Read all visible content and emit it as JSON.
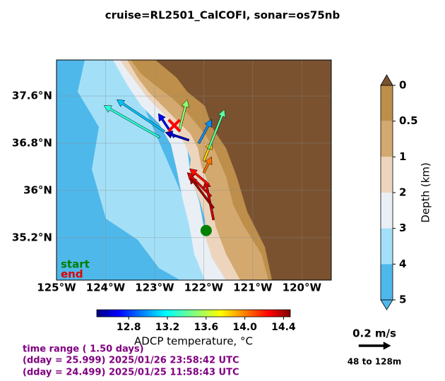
{
  "title": "cruise=RL2501_CalCOFI,   sonar=os75nb",
  "map": {
    "lonlim": [
      -125,
      -119.4
    ],
    "latlim": [
      34.48,
      38.21
    ],
    "lon_ticks": [
      {
        "value": -125,
        "label": "125°W"
      },
      {
        "value": -124,
        "label": "124°W"
      },
      {
        "value": -123,
        "label": "123°W"
      },
      {
        "value": -122,
        "label": "122°W"
      },
      {
        "value": -121,
        "label": "121°W"
      },
      {
        "value": -120,
        "label": "120°W"
      }
    ],
    "lat_ticks": [
      {
        "value": 37.6,
        "label": "37.6°N"
      },
      {
        "value": 36.8,
        "label": "36.8°N"
      },
      {
        "value": 36,
        "label": "36°N"
      },
      {
        "value": 35.2,
        "label": "35.2°N"
      }
    ],
    "legend": {
      "start": "start",
      "end": "end"
    },
    "track": {
      "start": [
        -121.95,
        35.32
      ],
      "end": [
        -122.6,
        37.1
      ]
    },
    "vectors": [
      {
        "lon": -121.8,
        "lat": 35.5,
        "u": -0.05,
        "v": 0.25,
        "temp": 14.3
      },
      {
        "lon": -121.8,
        "lat": 35.7,
        "u": -0.15,
        "v": 0.2,
        "temp": 14.4
      },
      {
        "lon": -121.85,
        "lat": 35.9,
        "u": -0.15,
        "v": 0.15,
        "temp": 14.3
      },
      {
        "lon": -121.9,
        "lat": 36.1,
        "u": -0.12,
        "v": 0.1,
        "temp": 14.2
      },
      {
        "lon": -122.0,
        "lat": 36.3,
        "u": 0.05,
        "v": 0.1,
        "temp": 14.0
      },
      {
        "lon": -122.0,
        "lat": 36.5,
        "u": 0.05,
        "v": 0.12,
        "temp": 13.8
      },
      {
        "lon": -121.9,
        "lat": 36.7,
        "u": 0.1,
        "v": 0.25,
        "temp": 13.4
      },
      {
        "lon": -122.1,
        "lat": 36.8,
        "u": 0.08,
        "v": 0.15,
        "temp": 13.0
      },
      {
        "lon": -122.3,
        "lat": 36.85,
        "u": -0.15,
        "v": 0.05,
        "temp": 12.6
      },
      {
        "lon": -122.6,
        "lat": 36.9,
        "u": -0.1,
        "v": 0.15,
        "temp": 12.7
      },
      {
        "lon": -122.8,
        "lat": 37.0,
        "u": -0.3,
        "v": 0.2,
        "temp": 13.1
      },
      {
        "lon": -122.9,
        "lat": 36.9,
        "u": -0.35,
        "v": 0.2,
        "temp": 13.3
      },
      {
        "lon": -122.5,
        "lat": 37.0,
        "u": 0.05,
        "v": 0.2,
        "temp": 13.5
      }
    ]
  },
  "depth_colorbar": {
    "label": "Depth (km)",
    "ticks": [
      0,
      0.5,
      1,
      2,
      3,
      4,
      5
    ],
    "colors": [
      "#bd8f4b",
      "#d3a96f",
      "#edd5bd",
      "#e9eff4",
      "#a3e0f8",
      "#4fb8ea"
    ]
  },
  "temperature_colorbar": {
    "label": "ADCP temperature, °C",
    "lim": [
      12.47,
      14.47
    ],
    "ticks": [
      12.8,
      13.2,
      13.6,
      {
        "value": 14,
        "label": "14.0"
      },
      14.4
    ]
  },
  "time_range": [
    "time range ( 1.50 days)",
    "(dday = 25.999) 2025/01/26 23:58:42 UTC",
    "(dday = 24.499) 2025/01/25 11:58:43 UTC"
  ],
  "scale": {
    "label": "0.2 m/s",
    "speed": 0.2,
    "depth_label": "48 to 128m"
  }
}
